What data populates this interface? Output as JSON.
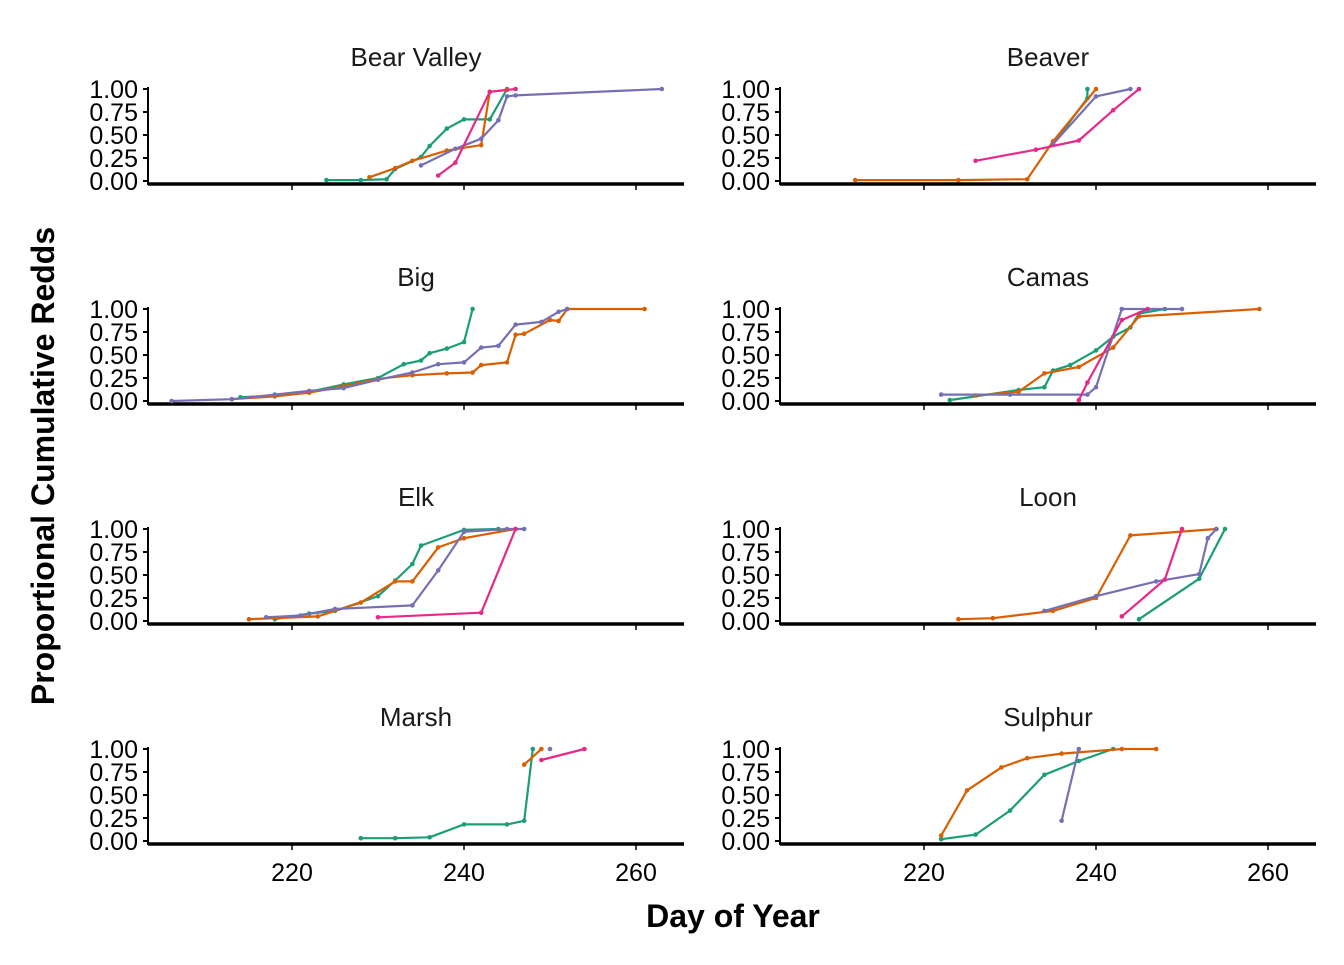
{
  "chart_data": {
    "type": "line",
    "xlabel": "Day of Year",
    "ylabel": "Proportional Cumulative Redds",
    "xlim": [
      203,
      266
    ],
    "ylim": [
      0,
      1
    ],
    "x_ticks": [
      220,
      240,
      260
    ],
    "x_tick_labels": [
      "220",
      "240",
      "260"
    ],
    "y_ticks": [
      0,
      0.25,
      0.5,
      0.75,
      1
    ],
    "y_tick_labels": [
      "0.00",
      "0.25",
      "0.50",
      "0.75",
      "1.00"
    ],
    "grid": false,
    "legend": "none",
    "layout": {
      "rows": 4,
      "cols": 2
    },
    "series_colors": [
      "#1b9e77",
      "#d95f02",
      "#7570b3",
      "#e7298a"
    ],
    "panels": [
      {
        "title": "Bear Valley",
        "series": [
          {
            "color": "#1b9e77",
            "points": [
              [
                224,
                0.01
              ],
              [
                228,
                0.01
              ],
              [
                231,
                0.02
              ],
              [
                232,
                0.13
              ],
              [
                235,
                0.26
              ],
              [
                236,
                0.38
              ],
              [
                238,
                0.57
              ],
              [
                240,
                0.67
              ],
              [
                243,
                0.67
              ],
              [
                245,
                1.0
              ]
            ]
          },
          {
            "color": "#d95f02",
            "points": [
              [
                229,
                0.04
              ],
              [
                232,
                0.14
              ],
              [
                234,
                0.22
              ],
              [
                238,
                0.33
              ],
              [
                242,
                0.39
              ],
              [
                243,
                0.97
              ],
              [
                245,
                0.99
              ]
            ]
          },
          {
            "color": "#7570b3",
            "points": [
              [
                235,
                0.17
              ],
              [
                239,
                0.35
              ],
              [
                242,
                0.46
              ],
              [
                244,
                0.66
              ],
              [
                245,
                0.92
              ],
              [
                246,
                0.93
              ],
              [
                263,
                1.0
              ]
            ]
          },
          {
            "color": "#e7298a",
            "points": [
              [
                237,
                0.06
              ],
              [
                239,
                0.2
              ],
              [
                243,
                0.97
              ],
              [
                246,
                1.0
              ]
            ]
          }
        ]
      },
      {
        "title": "Beaver",
        "series": [
          {
            "color": "#1b9e77",
            "points": [
              [
                235,
                0.4
              ],
              [
                239,
                0.9
              ],
              [
                239,
                1.0
              ]
            ]
          },
          {
            "color": "#d95f02",
            "points": [
              [
                212,
                0.01
              ],
              [
                224,
                0.01
              ],
              [
                232,
                0.02
              ],
              [
                235,
                0.43
              ],
              [
                240,
                1.0
              ]
            ]
          },
          {
            "color": "#7570b3",
            "points": [
              [
                235,
                0.4
              ],
              [
                240,
                0.92
              ],
              [
                244,
                1.0
              ]
            ]
          },
          {
            "color": "#e7298a",
            "points": [
              [
                226,
                0.22
              ],
              [
                233,
                0.34
              ],
              [
                238,
                0.44
              ],
              [
                242,
                0.77
              ],
              [
                245,
                1.0
              ]
            ]
          }
        ]
      },
      {
        "title": "Big",
        "series": [
          {
            "color": "#1b9e77",
            "points": [
              [
                214,
                0.04
              ],
              [
                218,
                0.06
              ],
              [
                222,
                0.1
              ],
              [
                226,
                0.18
              ],
              [
                230,
                0.25
              ],
              [
                233,
                0.4
              ],
              [
                235,
                0.44
              ],
              [
                236,
                0.52
              ],
              [
                238,
                0.57
              ],
              [
                240,
                0.64
              ],
              [
                241,
                1.0
              ]
            ]
          },
          {
            "color": "#d95f02",
            "points": [
              [
                213,
                0.02
              ],
              [
                218,
                0.05
              ],
              [
                222,
                0.09
              ],
              [
                226,
                0.16
              ],
              [
                230,
                0.24
              ],
              [
                234,
                0.28
              ],
              [
                238,
                0.3
              ],
              [
                241,
                0.31
              ],
              [
                242,
                0.39
              ],
              [
                245,
                0.42
              ],
              [
                246,
                0.72
              ],
              [
                247,
                0.73
              ],
              [
                250,
                0.88
              ],
              [
                251,
                0.87
              ],
              [
                252,
                1.0
              ],
              [
                261,
                1.0
              ]
            ]
          },
          {
            "color": "#7570b3",
            "points": [
              [
                206,
                0.0
              ],
              [
                213,
                0.02
              ],
              [
                218,
                0.07
              ],
              [
                222,
                0.11
              ],
              [
                226,
                0.14
              ],
              [
                230,
                0.23
              ],
              [
                234,
                0.31
              ],
              [
                237,
                0.4
              ],
              [
                240,
                0.42
              ],
              [
                242,
                0.58
              ],
              [
                244,
                0.6
              ],
              [
                246,
                0.83
              ],
              [
                249,
                0.86
              ],
              [
                251,
                0.97
              ],
              [
                252,
                1.0
              ]
            ]
          }
        ]
      },
      {
        "title": "Camas",
        "series": [
          {
            "color": "#1b9e77",
            "points": [
              [
                223,
                0.01
              ],
              [
                231,
                0.12
              ],
              [
                234,
                0.15
              ],
              [
                235,
                0.33
              ],
              [
                237,
                0.39
              ],
              [
                240,
                0.55
              ],
              [
                242,
                0.7
              ],
              [
                244,
                0.8
              ],
              [
                245,
                0.95
              ],
              [
                248,
                1.0
              ]
            ]
          },
          {
            "color": "#d95f02",
            "points": [
              [
                226,
                0.06
              ],
              [
                231,
                0.1
              ],
              [
                234,
                0.3
              ],
              [
                238,
                0.37
              ],
              [
                242,
                0.58
              ],
              [
                245,
                0.92
              ],
              [
                259,
                1.0
              ]
            ]
          },
          {
            "color": "#7570b3",
            "points": [
              [
                222,
                0.07
              ],
              [
                230,
                0.07
              ],
              [
                239,
                0.07
              ],
              [
                240,
                0.15
              ],
              [
                243,
                1.0
              ],
              [
                250,
                1.0
              ]
            ]
          },
          {
            "color": "#e7298a",
            "points": [
              [
                238,
                0.01
              ],
              [
                239,
                0.2
              ],
              [
                243,
                0.88
              ],
              [
                246,
                1.0
              ]
            ]
          }
        ]
      },
      {
        "title": "Elk",
        "series": [
          {
            "color": "#1b9e77",
            "points": [
              [
                218,
                0.02
              ],
              [
                222,
                0.08
              ],
              [
                225,
                0.11
              ],
              [
                230,
                0.27
              ],
              [
                232,
                0.44
              ],
              [
                234,
                0.62
              ],
              [
                235,
                0.82
              ],
              [
                240,
                0.99
              ],
              [
                244,
                1.0
              ]
            ]
          },
          {
            "color": "#d95f02",
            "points": [
              [
                215,
                0.02
              ],
              [
                223,
                0.05
              ],
              [
                228,
                0.2
              ],
              [
                232,
                0.43
              ],
              [
                234,
                0.43
              ],
              [
                237,
                0.8
              ],
              [
                240,
                0.9
              ],
              [
                246,
                1.0
              ]
            ]
          },
          {
            "color": "#7570b3",
            "points": [
              [
                217,
                0.04
              ],
              [
                221,
                0.06
              ],
              [
                225,
                0.13
              ],
              [
                234,
                0.17
              ],
              [
                237,
                0.55
              ],
              [
                240,
                0.97
              ],
              [
                245,
                1.0
              ],
              [
                247,
                1.0
              ]
            ]
          },
          {
            "color": "#e7298a",
            "points": [
              [
                230,
                0.04
              ],
              [
                242,
                0.09
              ],
              [
                246,
                1.0
              ]
            ]
          }
        ]
      },
      {
        "title": "Loon",
        "series": [
          {
            "color": "#1b9e77",
            "points": [
              [
                245,
                0.02
              ],
              [
                252,
                0.46
              ],
              [
                255,
                1.0
              ]
            ]
          },
          {
            "color": "#d95f02",
            "points": [
              [
                224,
                0.02
              ],
              [
                228,
                0.03
              ],
              [
                235,
                0.11
              ],
              [
                240,
                0.25
              ],
              [
                244,
                0.93
              ],
              [
                254,
                1.0
              ]
            ]
          },
          {
            "color": "#7570b3",
            "points": [
              [
                234,
                0.11
              ],
              [
                240,
                0.27
              ],
              [
                247,
                0.43
              ],
              [
                252,
                0.51
              ],
              [
                253,
                0.9
              ],
              [
                254,
                1.0
              ]
            ]
          },
          {
            "color": "#e7298a",
            "points": [
              [
                243,
                0.05
              ],
              [
                248,
                0.45
              ],
              [
                250,
                1.0
              ]
            ]
          }
        ]
      },
      {
        "title": "Marsh",
        "series": [
          {
            "color": "#1b9e77",
            "points": [
              [
                228,
                0.03
              ],
              [
                232,
                0.03
              ],
              [
                236,
                0.04
              ],
              [
                240,
                0.18
              ],
              [
                245,
                0.18
              ],
              [
                247,
                0.22
              ],
              [
                248,
                1.0
              ]
            ]
          },
          {
            "color": "#d95f02",
            "points": [
              [
                247,
                0.83
              ],
              [
                249,
                1.0
              ]
            ]
          },
          {
            "color": "#7570b3",
            "points": [
              [
                250,
                1.0
              ]
            ]
          },
          {
            "color": "#e7298a",
            "points": [
              [
                249,
                0.88
              ],
              [
                254,
                1.0
              ]
            ]
          }
        ]
      },
      {
        "title": "Sulphur",
        "series": [
          {
            "color": "#1b9e77",
            "points": [
              [
                222,
                0.02
              ],
              [
                226,
                0.07
              ],
              [
                230,
                0.33
              ],
              [
                234,
                0.72
              ],
              [
                238,
                0.87
              ],
              [
                242,
                1.0
              ]
            ]
          },
          {
            "color": "#d95f02",
            "points": [
              [
                222,
                0.06
              ],
              [
                225,
                0.55
              ],
              [
                229,
                0.8
              ],
              [
                232,
                0.9
              ],
              [
                236,
                0.95
              ],
              [
                243,
                1.0
              ],
              [
                247,
                1.0
              ]
            ]
          },
          {
            "color": "#7570b3",
            "points": [
              [
                236,
                0.22
              ],
              [
                238,
                1.0
              ]
            ]
          }
        ]
      }
    ]
  }
}
